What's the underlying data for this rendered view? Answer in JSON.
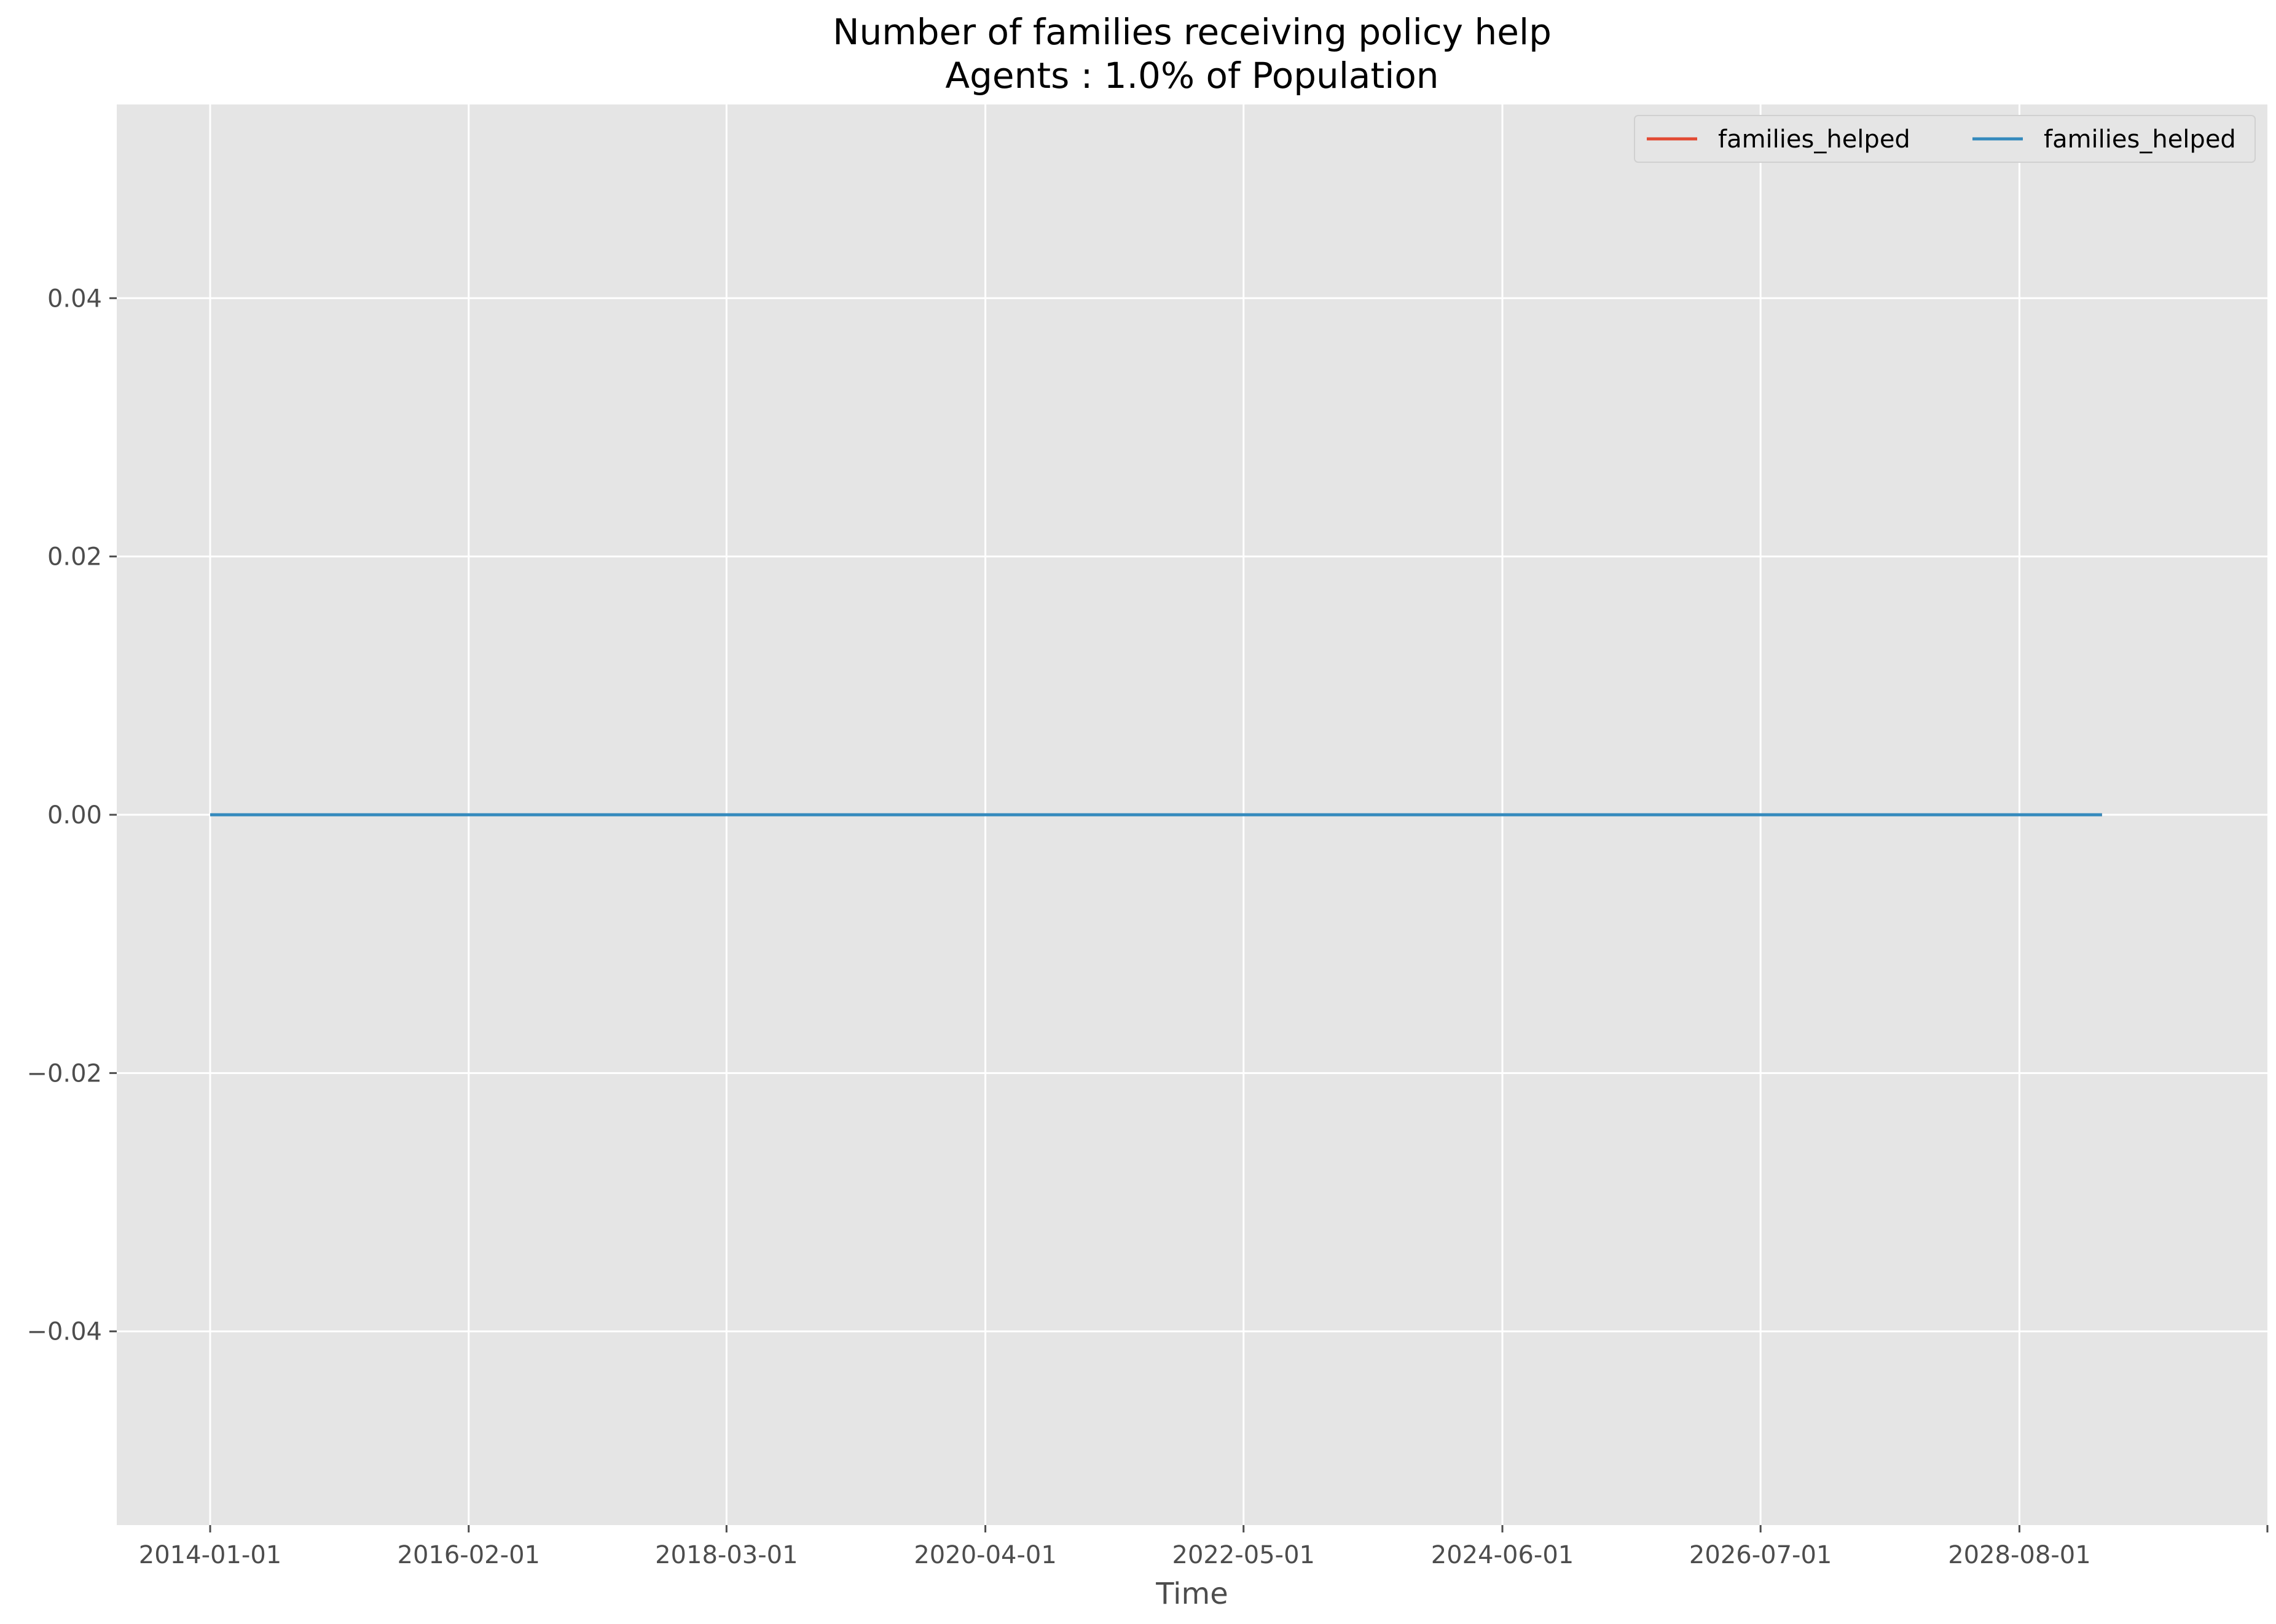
{
  "chart_data": {
    "type": "line",
    "title": "Number of families receiving policy help",
    "subtitle": "Agents : 1.0% of Population",
    "xlabel": "Time",
    "ylabel": "",
    "x_ticks": [
      "2014-01-01",
      "2016-02-01",
      "2018-03-01",
      "2020-04-01",
      "2022-05-01",
      "2024-06-01",
      "2026-07-01",
      "2028-08-01"
    ],
    "y_ticks": [
      "0.04",
      "0.02",
      "0.00",
      "−0.02",
      "−0.04"
    ],
    "y_tick_values": [
      0.04,
      0.02,
      0.0,
      -0.02,
      -0.04
    ],
    "xlim": [
      "2013-04-01",
      "2030-08-01"
    ],
    "ylim": [
      -0.055,
      0.055
    ],
    "grid": true,
    "legend_position": "top-right",
    "x": [
      "2014-01-01",
      "2029-04-01"
    ],
    "series": [
      {
        "name": "families_helped",
        "color": "#e24a33",
        "values": [
          0,
          0
        ]
      },
      {
        "name": "families_helped",
        "color": "#348abd",
        "values": [
          0,
          0
        ]
      }
    ]
  },
  "colors": {
    "plot_background": "#e5e5e5",
    "grid": "#ffffff",
    "tick": "#4d4d4d"
  }
}
